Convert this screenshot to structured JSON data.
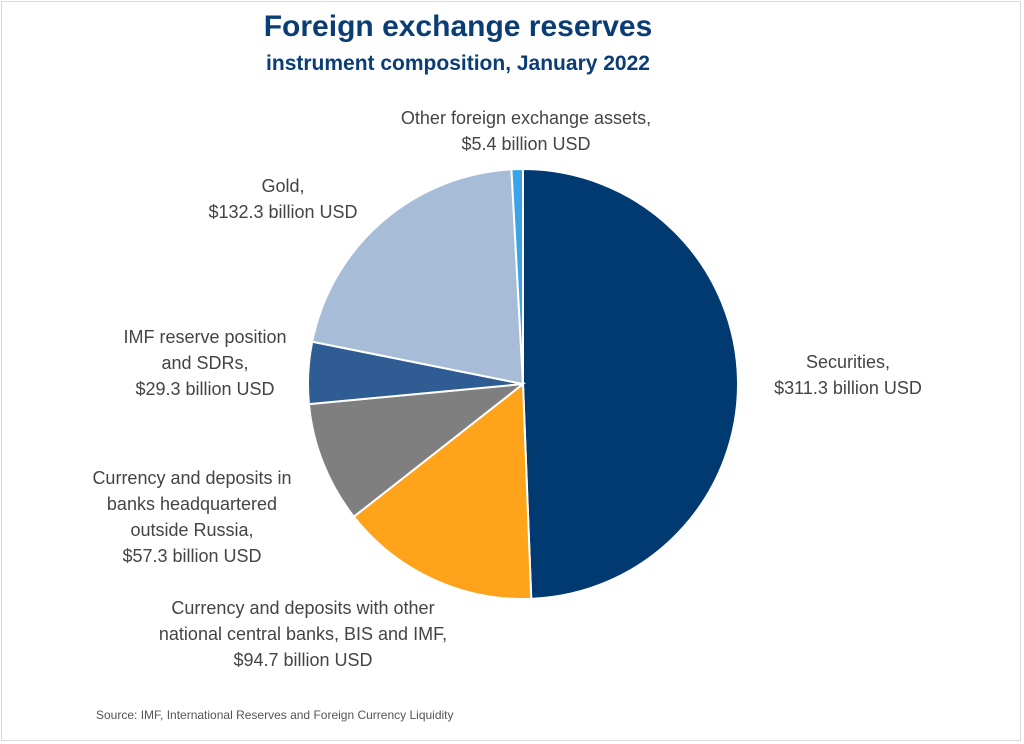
{
  "chart_data": {
    "type": "pie",
    "title": "Foreign exchange reserves",
    "subtitle": "instrument composition, January 2022",
    "slices": [
      {
        "label": "Securities",
        "lines": [
          "Securities,",
          "$311.3 billion USD"
        ],
        "value": 311.3,
        "color": "#003a70"
      },
      {
        "label": "Currency and deposits with other national central banks, BIS and IMF",
        "lines": [
          "Currency and deposits with other",
          "national central banks, BIS and IMF,",
          "$94.7 billion USD"
        ],
        "value": 94.7,
        "color": "#ffa31a"
      },
      {
        "label": "Currency and deposits in banks headquartered outside Russia",
        "lines": [
          "Currency and deposits in",
          "banks headquartered",
          "outside Russia,",
          "$57.3 billion USD"
        ],
        "value": 57.3,
        "color": "#7f7f7f"
      },
      {
        "label": "IMF reserve position and SDRs",
        "lines": [
          "IMF reserve position",
          "and SDRs,",
          "$29.3 billion USD"
        ],
        "value": 29.3,
        "color": "#2f5d93"
      },
      {
        "label": "Gold",
        "lines": [
          "Gold,",
          "$132.3 billion USD"
        ],
        "value": 132.3,
        "color": "#a7bcd7"
      },
      {
        "label": "Other foreign exchange assets",
        "lines": [
          "Other foreign exchange assets,",
          "$5.4 billion USD"
        ],
        "value": 5.4,
        "color": "#3ba3e8"
      }
    ]
  },
  "source": "Source: IMF, International Reserves and Foreign Currency Liquidity"
}
